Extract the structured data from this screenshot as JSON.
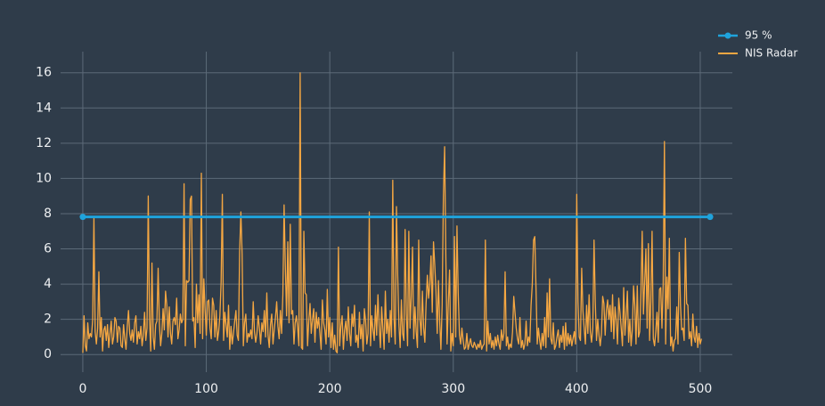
{
  "chart_data": {
    "type": "line",
    "xlim": [
      -18,
      526
    ],
    "xticks": [
      0,
      100,
      200,
      300,
      400,
      500
    ],
    "ylim": [
      -1,
      17.2
    ],
    "yticks": [
      0,
      2,
      4,
      6,
      8,
      10,
      12,
      14,
      16
    ],
    "grid": true,
    "legend": "top-right",
    "series": [
      {
        "name": "95 %",
        "color": "#1fa3dc",
        "x": [
          0,
          508
        ],
        "values": [
          7.815,
          7.815
        ],
        "markers": true
      },
      {
        "name": "NIS Radar",
        "color": "#f5a742",
        "values": [
          0.1,
          2.2,
          0.5,
          0.2,
          1.8,
          0.9,
          1.2,
          1.0,
          2.0,
          7.8,
          1.3,
          0.6,
          1.5,
          4.7,
          1.0,
          2.1,
          0.2,
          1.4,
          1.6,
          0.8,
          1.7,
          0.4,
          1.2,
          1.9,
          0.6,
          1.0,
          2.1,
          1.9,
          0.7,
          1.6,
          1.5,
          0.5,
          0.4,
          1.7,
          0.9,
          0.3,
          1.6,
          2.5,
          1.2,
          0.8,
          1.4,
          0.7,
          1.8,
          2.2,
          0.6,
          1.3,
          0.9,
          1.6,
          0.5,
          1.1,
          2.4,
          0.8,
          1.5,
          9.0,
          2.0,
          0.2,
          5.2,
          1.0,
          0.3,
          1.7,
          1.9,
          4.9,
          1.8,
          0.5,
          1.2,
          2.6,
          1.4,
          3.6,
          2.8,
          1.0,
          2.7,
          1.2,
          0.6,
          1.9,
          2.1,
          1.7,
          3.2,
          0.9,
          1.4,
          2.3,
          1.8,
          2.0,
          9.7,
          0.5,
          4.2,
          4.1,
          4.2,
          8.8,
          9.0,
          1.9,
          2.1,
          0.4,
          4.0,
          1.8,
          3.4,
          1.2,
          10.3,
          0.9,
          4.3,
          2.6,
          1.1,
          3.0,
          3.1,
          1.5,
          0.9,
          3.2,
          2.8,
          1.0,
          2.5,
          0.8,
          1.3,
          2.2,
          4.1,
          9.1,
          0.8,
          2.4,
          1.7,
          1.0,
          2.8,
          0.3,
          1.6,
          0.6,
          1.2,
          1.9,
          2.5,
          1.1,
          0.8,
          5.8,
          8.1,
          5.7,
          0.5,
          1.8,
          2.3,
          0.7,
          1.2,
          1.0,
          1.4,
          0.9,
          3.0,
          1.3,
          0.7,
          1.2,
          2.2,
          1.5,
          0.6,
          1.8,
          1.3,
          2.5,
          1.0,
          3.5,
          1.1,
          0.4,
          1.7,
          2.3,
          0.6,
          1.4,
          2.1,
          3.0,
          1.6,
          0.9,
          2.5,
          1.2,
          3.4,
          8.5,
          5.0,
          2.2,
          6.4,
          1.8,
          7.4,
          2.3,
          2.5,
          0.6,
          1.8,
          2.2,
          1.5,
          0.5,
          16.0,
          0.4,
          0.3,
          7.0,
          3.5,
          3.4,
          0.5,
          1.9,
          2.9,
          1.2,
          2.0,
          2.6,
          0.7,
          2.4,
          1.5,
          2.1,
          1.2,
          0.3,
          3.1,
          1.8,
          1.4,
          0.6,
          3.7,
          1.0,
          2.1,
          0.4,
          1.8,
          0.3,
          1.1,
          0.2,
          0.1,
          6.1,
          0.5,
          1.6,
          2.2,
          0.3,
          1.4,
          1.9,
          0.8,
          2.7,
          1.2,
          0.5,
          2.3,
          1.6,
          2.8,
          0.7,
          1.1,
          0.4,
          2.4,
          0.9,
          1.7,
          0.2,
          2.6,
          1.9,
          0.6,
          1.2,
          8.1,
          0.5,
          2.2,
          1.4,
          0.8,
          2.8,
          1.1,
          3.4,
          1.6,
          0.4,
          2.7,
          1.5,
          0.3,
          3.6,
          1.2,
          2.0,
          0.7,
          2.5,
          1.0,
          9.9,
          2.1,
          0.6,
          8.4,
          4.5,
          1.7,
          0.4,
          3.1,
          1.2,
          0.8,
          7.1,
          2.3,
          0.5,
          7.0,
          1.5,
          3.3,
          6.1,
          0.9,
          2.7,
          1.3,
          0.4,
          6.5,
          2.0,
          1.1,
          3.6,
          1.5,
          0.7,
          2.9,
          4.5,
          3.2,
          4.0,
          5.6,
          2.4,
          6.4,
          5.1,
          3.6,
          1.2,
          4.2,
          1.9,
          0.3,
          2.8,
          9.0,
          11.8,
          5.5,
          0.6,
          2.9,
          4.8,
          0.2,
          1.2,
          0.5,
          6.7,
          1.0,
          7.3,
          3.5,
          1.1,
          0.6,
          1.5,
          0.8,
          0.3,
          0.4,
          1.2,
          0.3,
          0.6,
          0.9,
          0.5,
          0.4,
          0.7,
          0.5,
          0.3,
          0.6,
          0.4,
          0.8,
          0.3,
          0.5,
          0.6,
          6.5,
          0.2,
          1.9,
          0.6,
          1.2,
          0.4,
          0.8,
          0.3,
          1.0,
          0.5,
          1.1,
          0.6,
          0.3,
          1.4,
          0.8,
          1.2,
          4.7,
          0.5,
          1.0,
          0.3,
          0.6,
          0.4,
          1.3,
          3.3,
          2.4,
          1.5,
          0.9,
          0.6,
          2.1,
          0.4,
          0.8,
          0.3,
          0.6,
          1.9,
          0.5,
          1.0,
          0.7,
          2.8,
          4.0,
          6.5,
          6.7,
          3.8,
          0.6,
          1.5,
          0.8,
          0.3,
          1.2,
          0.5,
          2.1,
          0.4,
          3.5,
          1.0,
          4.3,
          0.9,
          0.6,
          1.8,
          0.3,
          0.5,
          1.0,
          1.4,
          0.4,
          1.1,
          0.7,
          1.6,
          0.3,
          1.8,
          0.5,
          1.2,
          0.6,
          1.1,
          0.5,
          0.9,
          1.3,
          0.6,
          9.1,
          3.0,
          1.0,
          0.8,
          4.9,
          2.5,
          1.5,
          0.6,
          2.8,
          1.2,
          3.4,
          1.3,
          0.7,
          1.5,
          6.5,
          3.0,
          0.8,
          2.0,
          1.1,
          0.5,
          1.2,
          3.3,
          2.9,
          1.1,
          2.5,
          3.1,
          2.0,
          2.8,
          1.3,
          3.4,
          0.9,
          2.7,
          1.9,
          0.6,
          3.2,
          2.4,
          1.5,
          0.5,
          3.8,
          1.1,
          2.2,
          3.6,
          0.7,
          2.0,
          0.5,
          1.4,
          3.9,
          2.8,
          0.6,
          3.9,
          1.0,
          1.3,
          3.5,
          7.0,
          2.3,
          4.1,
          6.0,
          1.5,
          6.3,
          0.8,
          3.0,
          7.0,
          0.9,
          0.5,
          1.3,
          2.4,
          0.7,
          3.7,
          3.8,
          1.5,
          4.0,
          12.1,
          0.6,
          4.4,
          2.6,
          6.6,
          0.5,
          1.0,
          0.2,
          0.8,
          0.9,
          2.7,
          0.6,
          5.8,
          2.8,
          1.4,
          1.5,
          0.8,
          6.6,
          2.9,
          2.8,
          0.9,
          1.3,
          0.5,
          2.3,
          1.0,
          0.7,
          1.6,
          0.4,
          1.2,
          0.6,
          0.9
        ]
      }
    ]
  }
}
